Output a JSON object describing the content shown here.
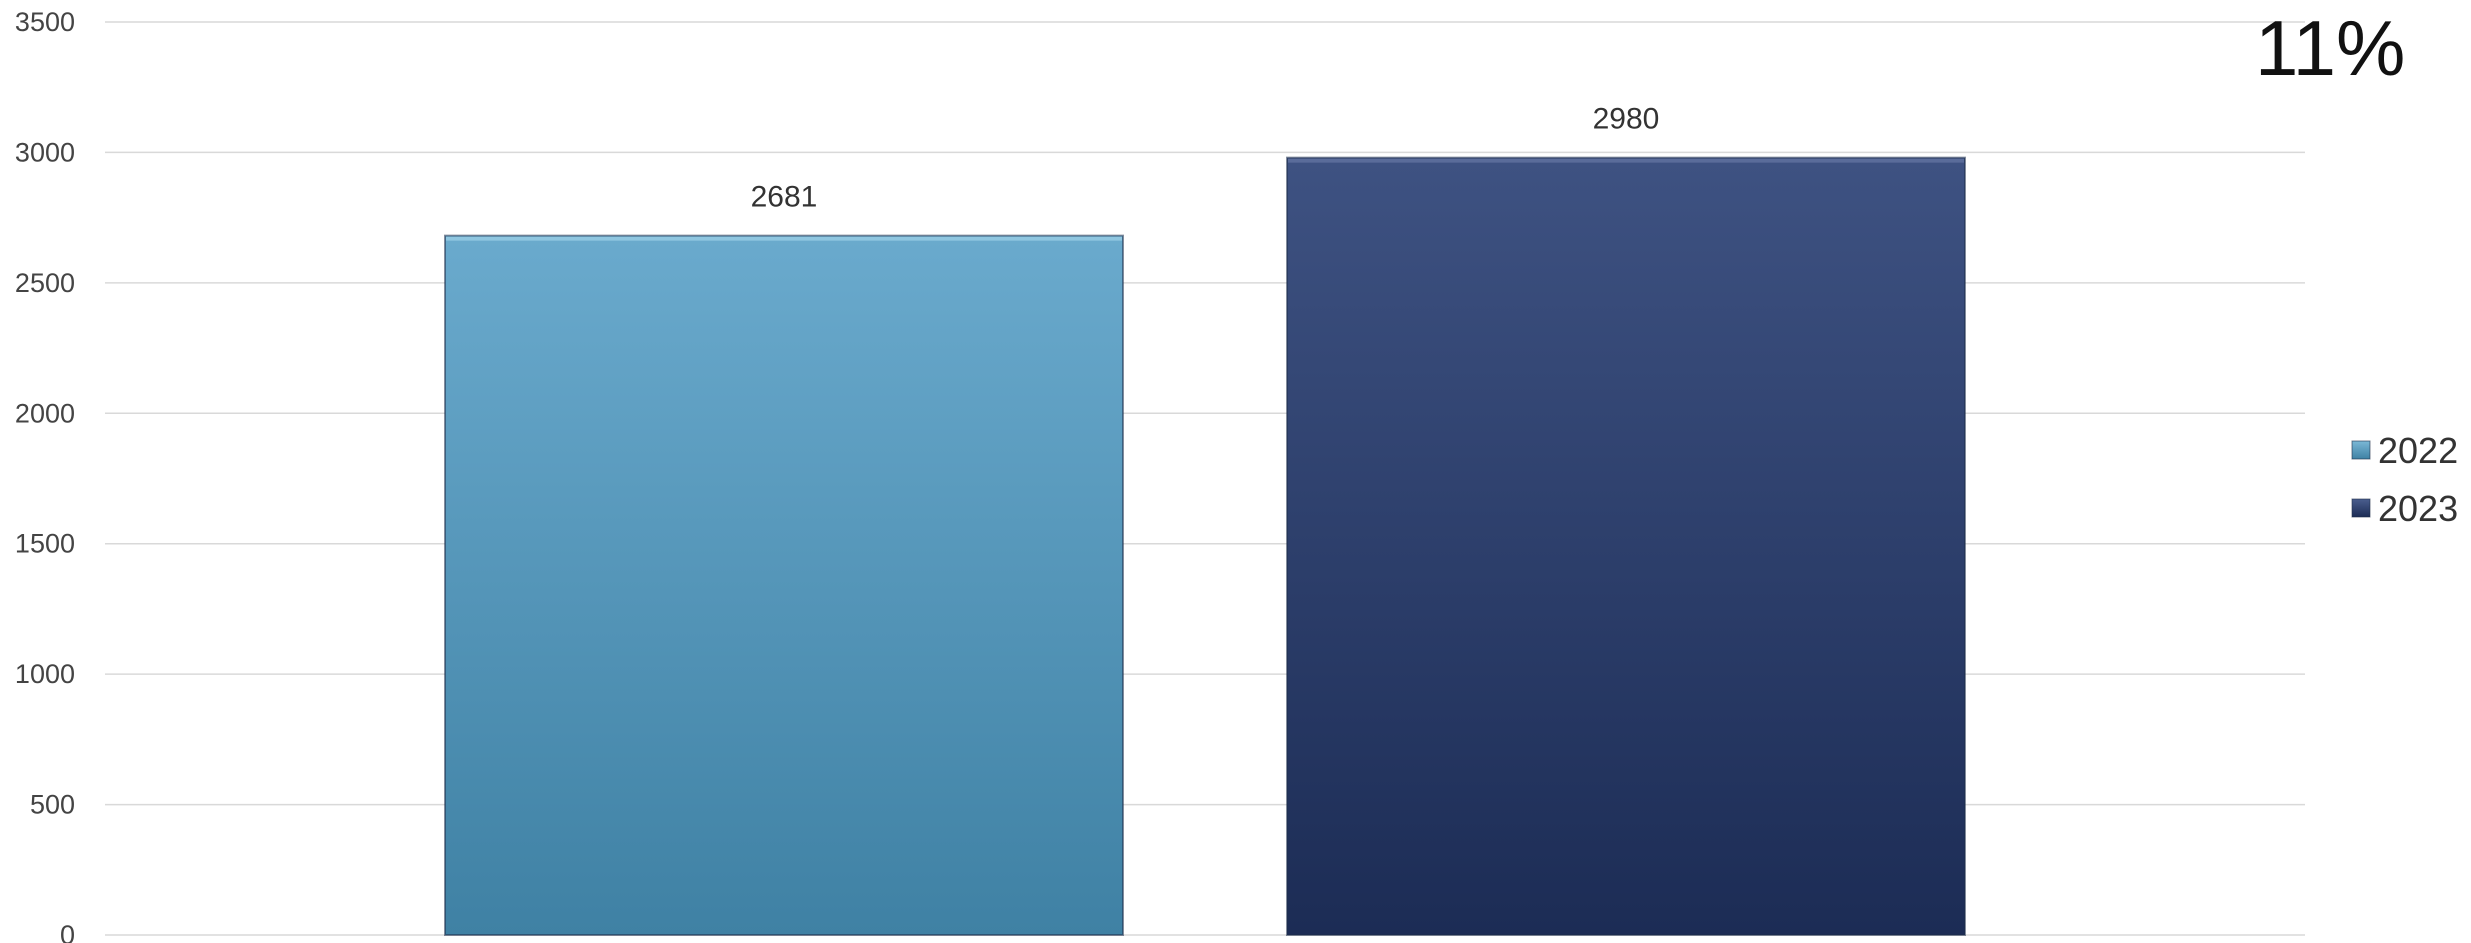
{
  "chart_data": {
    "type": "bar",
    "categories": [
      ""
    ],
    "series": [
      {
        "name": "2022",
        "values": [
          2681
        ],
        "color": "#4f93b6"
      },
      {
        "name": "2023",
        "values": [
          2980
        ],
        "color": "#2a3d6b"
      }
    ],
    "ylim": [
      0,
      3500
    ],
    "yticks": [
      0,
      500,
      1000,
      1500,
      2000,
      2500,
      3000,
      3500
    ],
    "grid": true,
    "legend_position": "right",
    "annotation": "11%",
    "data_labels": true
  }
}
